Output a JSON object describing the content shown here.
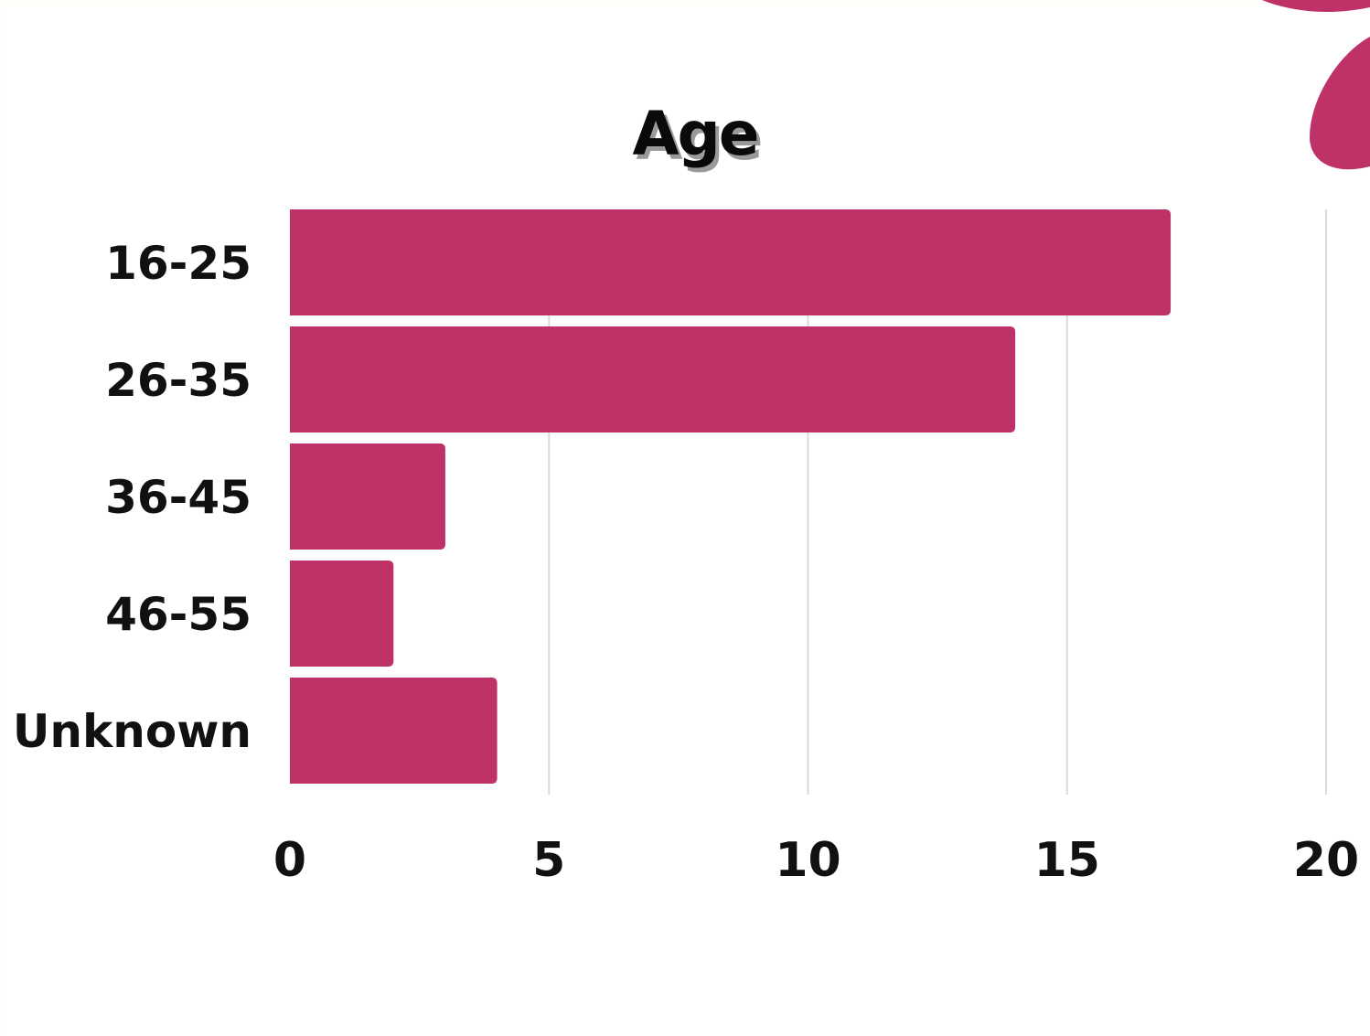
{
  "chart_data": {
    "type": "bar",
    "orientation": "horizontal",
    "title": "Age",
    "categories": [
      "16-25",
      "26-35",
      "36-45",
      "46-55",
      "Unknown"
    ],
    "values": [
      17,
      14,
      3,
      2,
      4
    ],
    "xlabel": "",
    "ylabel": "",
    "xlim": [
      0,
      20
    ],
    "xticks": [
      "0",
      "5",
      "10",
      "15",
      "20"
    ],
    "grid": "vertical",
    "legend": "none",
    "bar_color": "#be3268",
    "gridline_color": "#d9d9d9"
  },
  "decoration": {
    "blob_color": "#be3268"
  }
}
